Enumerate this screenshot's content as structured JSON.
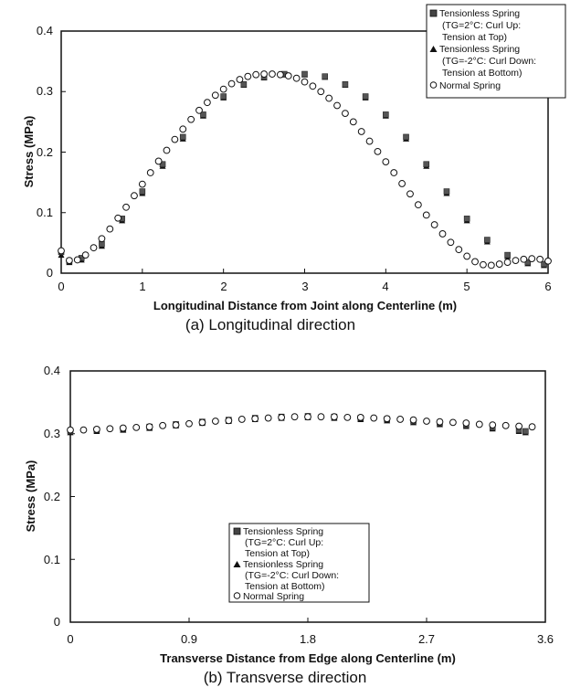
{
  "chart_data": [
    {
      "type": "scatter",
      "caption": "(a) Longitudinal direction",
      "xlabel": "Longitudinal Distance from Joint along Centerline (m)",
      "ylabel": "Stress (MPa)",
      "xlim": [
        0,
        6
      ],
      "ylim": [
        0,
        0.4
      ],
      "xticks": [
        "0",
        "1",
        "2",
        "3",
        "4",
        "5",
        "6"
      ],
      "yticks": [
        "0",
        "0.1",
        "0.2",
        "0.3",
        "0.4"
      ],
      "legend_position": "top-right",
      "legend_lines": [
        [
          "Tensionless Spring",
          "(TG=2°C: Curl Up:",
          "Tension at Top)"
        ],
        [
          "Tensionless Spring",
          "(TG=-2°C: Curl Down:",
          "Tension at Bottom)"
        ],
        [
          "Normal Spring"
        ]
      ],
      "series": [
        {
          "name": "Tensionless Spring (TG=2°C: Curl Up: Tension at Top)",
          "marker": "square",
          "x": [
            0,
            0.1,
            0.25,
            0.5,
            0.75,
            1.0,
            1.25,
            1.5,
            1.75,
            2.0,
            2.25,
            2.5,
            2.75,
            3.0,
            3.25,
            3.5,
            3.75,
            4.0,
            4.25,
            4.5,
            4.75,
            5.0,
            5.25,
            5.5,
            5.75,
            5.95
          ],
          "y": [
            0.035,
            0.02,
            0.025,
            0.048,
            0.09,
            0.135,
            0.18,
            0.225,
            0.262,
            0.292,
            0.312,
            0.324,
            0.329,
            0.329,
            0.325,
            0.312,
            0.292,
            0.262,
            0.225,
            0.18,
            0.135,
            0.09,
            0.055,
            0.03,
            0.018,
            0.015
          ]
        },
        {
          "name": "Tensionless Spring (TG=-2°C: Curl Down: Tension at Bottom)",
          "marker": "triangle",
          "x": [
            0,
            0.1,
            0.25,
            0.5,
            0.75,
            1.0,
            1.25,
            1.5,
            1.75,
            2.0,
            2.25,
            2.5,
            2.75,
            3.0,
            3.25,
            3.5,
            3.75,
            4.0,
            4.25,
            4.5,
            4.75,
            5.0,
            5.25,
            5.5,
            5.75,
            5.95
          ],
          "y": [
            0.03,
            0.018,
            0.022,
            0.045,
            0.087,
            0.132,
            0.177,
            0.222,
            0.26,
            0.29,
            0.311,
            0.323,
            0.328,
            0.328,
            0.324,
            0.311,
            0.29,
            0.26,
            0.222,
            0.177,
            0.132,
            0.087,
            0.052,
            0.028,
            0.016,
            0.013
          ]
        },
        {
          "name": "Normal Spring",
          "marker": "circle",
          "x": [
            0,
            0.1,
            0.2,
            0.3,
            0.4,
            0.5,
            0.6,
            0.7,
            0.8,
            0.9,
            1.0,
            1.1,
            1.2,
            1.3,
            1.4,
            1.5,
            1.6,
            1.7,
            1.8,
            1.9,
            2.0,
            2.1,
            2.2,
            2.3,
            2.4,
            2.5,
            2.6,
            2.7,
            2.8,
            2.9,
            3.0,
            3.1,
            3.2,
            3.3,
            3.4,
            3.5,
            3.6,
            3.7,
            3.8,
            3.9,
            4.0,
            4.1,
            4.2,
            4.3,
            4.4,
            4.5,
            4.6,
            4.7,
            4.8,
            4.9,
            5.0,
            5.1,
            5.2,
            5.3,
            5.4,
            5.5,
            5.6,
            5.7,
            5.8,
            5.9,
            6.0
          ],
          "y": [
            0.037,
            0.021,
            0.022,
            0.03,
            0.042,
            0.057,
            0.073,
            0.091,
            0.109,
            0.128,
            0.147,
            0.166,
            0.185,
            0.203,
            0.221,
            0.238,
            0.254,
            0.269,
            0.282,
            0.294,
            0.304,
            0.313,
            0.32,
            0.325,
            0.328,
            0.329,
            0.329,
            0.328,
            0.326,
            0.322,
            0.316,
            0.309,
            0.3,
            0.289,
            0.277,
            0.264,
            0.25,
            0.234,
            0.218,
            0.201,
            0.184,
            0.166,
            0.148,
            0.131,
            0.113,
            0.096,
            0.08,
            0.065,
            0.051,
            0.039,
            0.028,
            0.019,
            0.014,
            0.013,
            0.015,
            0.018,
            0.021,
            0.023,
            0.024,
            0.023,
            0.02
          ]
        }
      ]
    },
    {
      "type": "scatter",
      "caption": "(b) Transverse direction",
      "xlabel": "Transverse Distance from Edge along Centerline (m)",
      "ylabel": "Stress (MPa)",
      "xlim": [
        0,
        3.6
      ],
      "ylim": [
        0,
        0.4
      ],
      "xticks": [
        "0",
        "0.9",
        "1.8",
        "2.7",
        "3.6"
      ],
      "yticks": [
        "0",
        "0.1",
        "0.2",
        "0.3",
        "0.4"
      ],
      "legend_position": "bottom-center",
      "legend_lines": [
        [
          "Tensionless Spring",
          "(TG=2°C: Curl Up:",
          "Tension at Top)"
        ],
        [
          "Tensionless Spring",
          "(TG=-2°C: Curl Down:",
          "Tension at Bottom)"
        ],
        [
          "Normal Spring"
        ]
      ],
      "series": [
        {
          "name": "Tensionless Spring (TG=2°C: Curl Up: Tension at Top)",
          "marker": "square",
          "x": [
            0,
            0.2,
            0.4,
            0.6,
            0.8,
            1.0,
            1.2,
            1.4,
            1.6,
            1.8,
            2.0,
            2.2,
            2.4,
            2.6,
            2.8,
            3.0,
            3.2,
            3.4,
            3.45
          ],
          "y": [
            0.304,
            0.306,
            0.308,
            0.311,
            0.315,
            0.319,
            0.322,
            0.325,
            0.327,
            0.328,
            0.327,
            0.325,
            0.323,
            0.32,
            0.317,
            0.314,
            0.31,
            0.306,
            0.304
          ]
        },
        {
          "name": "Tensionless Spring (TG=-2°C: Curl Down: Tension at Bottom)",
          "marker": "triangle",
          "x": [
            0,
            0.2,
            0.4,
            0.6,
            0.8,
            1.0,
            1.2,
            1.4,
            1.6,
            1.8,
            2.0,
            2.2,
            2.4,
            2.6,
            2.8,
            3.0,
            3.2,
            3.4,
            3.45
          ],
          "y": [
            0.302,
            0.304,
            0.306,
            0.309,
            0.313,
            0.317,
            0.32,
            0.323,
            0.325,
            0.326,
            0.325,
            0.323,
            0.321,
            0.318,
            0.315,
            0.312,
            0.308,
            0.304,
            0.302
          ]
        },
        {
          "name": "Normal Spring",
          "marker": "circle",
          "x": [
            0,
            0.1,
            0.2,
            0.3,
            0.4,
            0.5,
            0.6,
            0.7,
            0.8,
            0.9,
            1.0,
            1.1,
            1.2,
            1.3,
            1.4,
            1.5,
            1.6,
            1.7,
            1.8,
            1.9,
            2.0,
            2.1,
            2.2,
            2.3,
            2.4,
            2.5,
            2.6,
            2.7,
            2.8,
            2.9,
            3.0,
            3.1,
            3.2,
            3.3,
            3.4,
            3.5
          ],
          "y": [
            0.306,
            0.306,
            0.307,
            0.308,
            0.309,
            0.31,
            0.311,
            0.313,
            0.314,
            0.316,
            0.318,
            0.32,
            0.321,
            0.323,
            0.324,
            0.325,
            0.326,
            0.327,
            0.327,
            0.327,
            0.327,
            0.326,
            0.326,
            0.325,
            0.324,
            0.323,
            0.322,
            0.32,
            0.319,
            0.318,
            0.317,
            0.315,
            0.314,
            0.313,
            0.312,
            0.311
          ]
        }
      ]
    }
  ]
}
